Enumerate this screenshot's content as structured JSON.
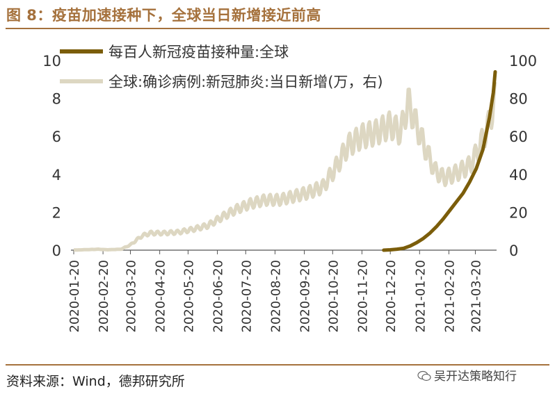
{
  "header": {
    "title": "图 8：疫苗加速接种下，全球当日新增接近前高"
  },
  "footer": {
    "source": "资料来源：Wind，德邦研究所",
    "watermark": "吴开达策略知行"
  },
  "colors": {
    "accent": "#a5713c",
    "vaccine_series": "#7b5d0a",
    "cases_series": "#ddd7c2"
  },
  "chart_data": {
    "type": "line",
    "title": "",
    "xlabel": "",
    "ylabel_left": "",
    "ylabel_right": "",
    "ylim_left": [
      0,
      10
    ],
    "ylim_right": [
      0,
      100
    ],
    "yticks_left": [
      "0",
      "2",
      "4",
      "6",
      "8",
      "10"
    ],
    "yticks_right": [
      "0",
      "20",
      "40",
      "60",
      "80",
      "100"
    ],
    "xlim": [
      "2020-01-20",
      "2021-04-10"
    ],
    "x_tick_labels": [
      "2020-01-20",
      "2020-02-20",
      "2020-03-20",
      "2020-04-20",
      "2020-05-20",
      "2020-06-20",
      "2020-07-20",
      "2020-08-20",
      "2020-09-20",
      "2020-10-20",
      "2020-11-20",
      "2020-12-20",
      "2021-01-20",
      "2021-02-20",
      "2021-03-20"
    ],
    "grid": false,
    "legend_position": "top",
    "series": [
      {
        "name": "每百人新冠疫苗接种量:全球",
        "axis": "left",
        "color": "#7b5d0a",
        "points": [
          [
            "2020-12-13",
            0.0
          ],
          [
            "2020-12-20",
            0.02
          ],
          [
            "2020-12-27",
            0.05
          ],
          [
            "2021-01-03",
            0.1
          ],
          [
            "2021-01-10",
            0.22
          ],
          [
            "2021-01-17",
            0.4
          ],
          [
            "2021-01-24",
            0.62
          ],
          [
            "2021-01-31",
            0.9
          ],
          [
            "2021-02-07",
            1.25
          ],
          [
            "2021-02-14",
            1.65
          ],
          [
            "2021-02-21",
            2.1
          ],
          [
            "2021-02-28",
            2.55
          ],
          [
            "2021-03-07",
            3.0
          ],
          [
            "2021-03-14",
            3.6
          ],
          [
            "2021-03-21",
            4.3
          ],
          [
            "2021-03-28",
            5.3
          ],
          [
            "2021-04-04",
            7.0
          ],
          [
            "2021-04-08",
            8.3
          ],
          [
            "2021-04-10",
            9.4
          ]
        ]
      },
      {
        "name": "全球:确诊病例:新冠肺炎:当日新增(万，右)",
        "axis": "right",
        "color": "#ddd7c2",
        "points": [
          [
            "2020-01-20",
            0.05
          ],
          [
            "2020-02-05",
            0.3
          ],
          [
            "2020-02-15",
            0.5
          ],
          [
            "2020-02-25",
            0.2
          ],
          [
            "2020-03-10",
            0.5
          ],
          [
            "2020-03-20",
            2.8
          ],
          [
            "2020-04-01",
            7.5
          ],
          [
            "2020-04-10",
            9.0
          ],
          [
            "2020-04-25",
            9.0
          ],
          [
            "2020-05-10",
            9.5
          ],
          [
            "2020-05-25",
            11.0
          ],
          [
            "2020-06-10",
            13.0
          ],
          [
            "2020-06-25",
            17.5
          ],
          [
            "2020-07-10",
            21.5
          ],
          [
            "2020-07-25",
            24.5
          ],
          [
            "2020-08-10",
            26.5
          ],
          [
            "2020-08-25",
            26.5
          ],
          [
            "2020-09-10",
            28.5
          ],
          [
            "2020-09-25",
            30.5
          ],
          [
            "2020-10-10",
            33.5
          ],
          [
            "2020-10-25",
            45.0
          ],
          [
            "2020-11-05",
            55.0
          ],
          [
            "2020-11-20",
            60.0
          ],
          [
            "2020-12-05",
            62.0
          ],
          [
            "2020-12-20",
            66.0
          ],
          [
            "2020-12-31",
            62.0
          ],
          [
            "2021-01-08",
            78.0
          ],
          [
            "2021-01-15",
            68.0
          ],
          [
            "2021-01-25",
            55.0
          ],
          [
            "2021-02-05",
            42.0
          ],
          [
            "2021-02-15",
            38.0
          ],
          [
            "2021-02-25",
            40.0
          ],
          [
            "2021-03-05",
            42.0
          ],
          [
            "2021-03-15",
            45.0
          ],
          [
            "2021-03-25",
            55.0
          ],
          [
            "2021-04-03",
            66.0
          ],
          [
            "2021-04-10",
            80.0
          ]
        ]
      }
    ]
  }
}
